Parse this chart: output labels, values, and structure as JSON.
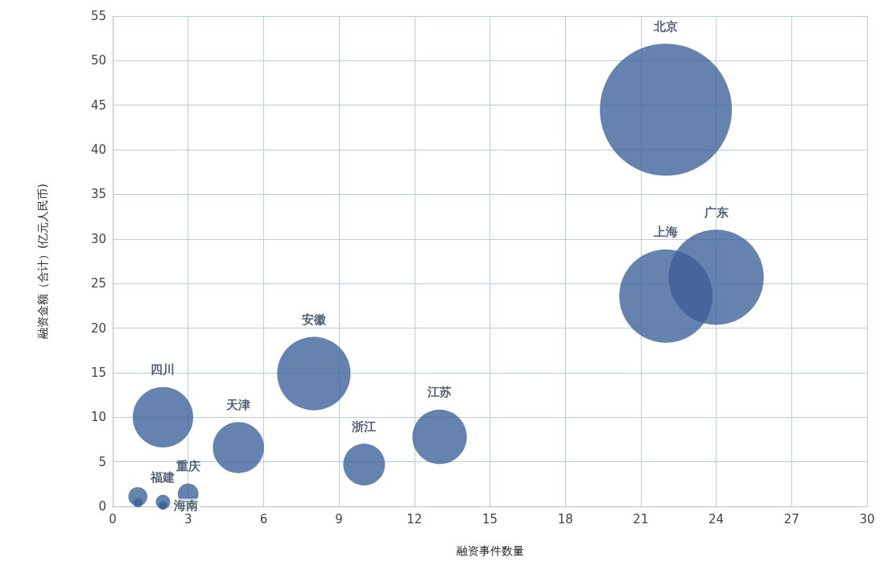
{
  "chart_data": {
    "type": "bubble",
    "xlabel": "融资事件数量",
    "ylabel": "融资金额（合计）(亿元人民币)",
    "x": [
      22,
      24,
      22,
      8,
      2,
      13,
      5,
      10,
      3,
      2,
      2,
      1,
      1
    ],
    "series": [
      {
        "color": "#3b5f99",
        "values": [
          44.5,
          25.7,
          23.6,
          14.9,
          10.0,
          7.8,
          6.6,
          4.7,
          1.4,
          0.5,
          0.1,
          1.1,
          0.4
        ],
        "sizes": [
          1,
          0.52,
          0.5,
          0.31,
          0.21,
          0.17,
          0.15,
          0.1,
          0.025,
          0.012,
          0.004,
          0.021,
          0.005
        ],
        "value_labels": [
          "北京",
          "广东",
          "上海",
          "安徽",
          "四川",
          "江苏",
          "天津",
          "浙江",
          "重庆",
          "福建",
          "海南",
          null,
          null
        ]
      }
    ],
    "xlim": [
      0,
      30
    ],
    "xticks": [
      0,
      3,
      6,
      9,
      12,
      15,
      18,
      21,
      24,
      27,
      30
    ],
    "ylim": [
      0,
      55
    ],
    "yticks": [
      0,
      5,
      10,
      15,
      20,
      25,
      30,
      35,
      40,
      45,
      50,
      55
    ],
    "grid": true,
    "marker": "circle"
  }
}
